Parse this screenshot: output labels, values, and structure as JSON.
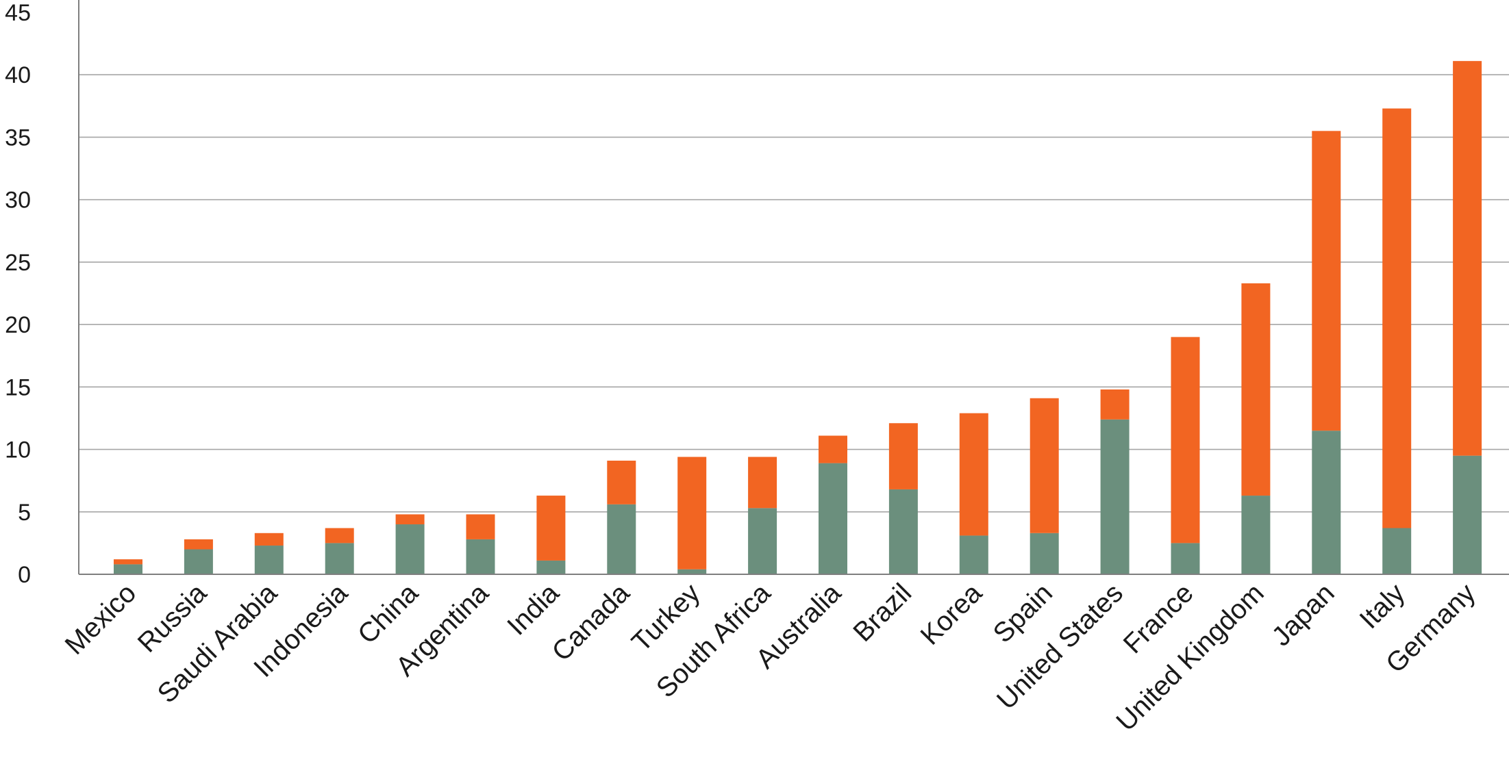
{
  "chart_data": {
    "type": "bar",
    "stacked": true,
    "categories": [
      "Mexico",
      "Russia",
      "Saudi Arabia",
      "Indonesia",
      "China",
      "Argentina",
      "India",
      "Canada",
      "Turkey",
      "South Africa",
      "Australia",
      "Brazil",
      "Korea",
      "Spain",
      "United States",
      "France",
      "United Kingdom",
      "Japan",
      "Italy",
      "Germany"
    ],
    "series": [
      {
        "color": "#6b8f7d",
        "values": [
          0.8,
          2.0,
          2.3,
          2.5,
          4.0,
          2.8,
          1.1,
          5.6,
          0.4,
          5.3,
          8.9,
          6.8,
          3.1,
          3.3,
          12.4,
          2.5,
          6.3,
          11.5,
          3.7,
          9.5
        ]
      },
      {
        "color": "#f26522",
        "values": [
          0.4,
          0.8,
          1.0,
          1.2,
          0.8,
          2.0,
          5.2,
          3.5,
          9.0,
          4.1,
          2.2,
          5.3,
          9.8,
          10.8,
          2.4,
          16.5,
          17.0,
          24.0,
          33.6,
          31.6
        ]
      }
    ],
    "ylim": [
      0,
      45
    ],
    "yticks": [
      0,
      5,
      10,
      15,
      20,
      25,
      30,
      35,
      40,
      45
    ],
    "grid": true,
    "title": "",
    "xlabel": "",
    "ylabel": ""
  }
}
